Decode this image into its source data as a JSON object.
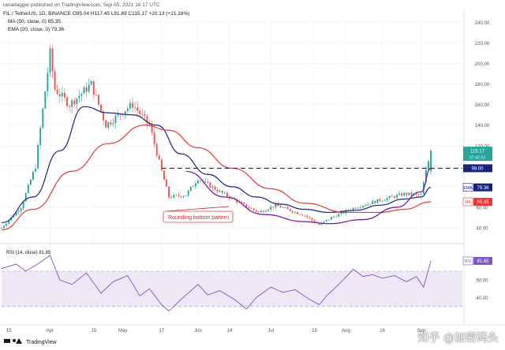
{
  "header": {
    "publisher": "ranadagger published on TradingView.com, Sep 05, 2021 16:17 UTC",
    "ohlc_line": "FIL / TetherUS, 1D, BINANCE  O95.04  H117.45  L91.89  C115.17  +20.13 (+21.18%)",
    "ma_line": "MA (50, close, 0)  65.35",
    "ema_line": "EMA (20, close, 0)  79.36"
  },
  "annotation": "Rounding bottom pattern",
  "footer_logo": "TradingView",
  "watermark": "知乎 @加密码头",
  "colors": {
    "up": "#26a69a",
    "down": "#ef5350",
    "ema": "#1a237e",
    "ma": "#e53935",
    "rounding": "#7b1fa2",
    "resistance": "#1a237e",
    "rsi": "#7e57c2",
    "rsi_band": "#ede7f6",
    "last_price": "#26a69a"
  },
  "chart_data": [
    {
      "type": "candlestick",
      "symbol": "FIL / TetherUS",
      "interval": "1D",
      "exchange": "BINANCE",
      "ohlc_last": {
        "open": 95.04,
        "high": 117.45,
        "low": 91.89,
        "close": 115.17,
        "change": 20.13,
        "change_pct": 21.18
      },
      "y_ticks": [
        40,
        60,
        80,
        100,
        120,
        140,
        160,
        180,
        200,
        220,
        240
      ],
      "ylim": [
        30,
        245
      ],
      "x_tick_labels": [
        "15",
        "Apr",
        "19",
        "May",
        "17",
        "Jun",
        "14",
        "Jul",
        "19",
        "Aug",
        "16",
        "Sep"
      ],
      "x_tick_dates": [
        "2021-03-15",
        "2021-04-01",
        "2021-04-19",
        "2021-05-01",
        "2021-05-17",
        "2021-06-01",
        "2021-06-14",
        "2021-07-01",
        "2021-07-19",
        "2021-08-01",
        "2021-08-16",
        "2021-09-01"
      ],
      "xlim": [
        "2021-03-12",
        "2021-09-18"
      ],
      "price_labels": [
        {
          "label": "115.17",
          "value": 115.17,
          "sublabel": "07:42:33",
          "color": "#26a69a"
        },
        {
          "label": "98.00",
          "value": 98.0,
          "color": "#1a237e"
        },
        {
          "label": "EMA",
          "value": 79.36,
          "text": "79.36",
          "color": "#1a237e"
        },
        {
          "label": "MA",
          "value": 65.35,
          "text": "65.35",
          "color": "#e53935"
        }
      ],
      "resistance_level": 98.0,
      "key_points": [
        {
          "date": "2021-03-12",
          "close": 40
        },
        {
          "date": "2021-03-20",
          "close": 60
        },
        {
          "date": "2021-03-26",
          "close": 100
        },
        {
          "date": "2021-04-01",
          "close": 210
        },
        {
          "date": "2021-04-03",
          "close": 175
        },
        {
          "date": "2021-04-09",
          "close": 160
        },
        {
          "date": "2021-04-18",
          "close": 180
        },
        {
          "date": "2021-04-24",
          "close": 140
        },
        {
          "date": "2021-05-02",
          "close": 155
        },
        {
          "date": "2021-05-05",
          "close": 160
        },
        {
          "date": "2021-05-12",
          "close": 140
        },
        {
          "date": "2021-05-17",
          "close": 95
        },
        {
          "date": "2021-05-20",
          "close": 70
        },
        {
          "date": "2021-05-27",
          "close": 72
        },
        {
          "date": "2021-06-01",
          "close": 88
        },
        {
          "date": "2021-06-10",
          "close": 75
        },
        {
          "date": "2021-06-20",
          "close": 62
        },
        {
          "date": "2021-06-26",
          "close": 55
        },
        {
          "date": "2021-07-03",
          "close": 62
        },
        {
          "date": "2021-07-15",
          "close": 52
        },
        {
          "date": "2021-07-21",
          "close": 43
        },
        {
          "date": "2021-07-26",
          "close": 50
        },
        {
          "date": "2021-08-05",
          "close": 60
        },
        {
          "date": "2021-08-15",
          "close": 67
        },
        {
          "date": "2021-08-25",
          "close": 73
        },
        {
          "date": "2021-09-01",
          "close": 72
        },
        {
          "date": "2021-09-03",
          "close": 95
        },
        {
          "date": "2021-09-05",
          "close": 115
        }
      ],
      "series": [
        {
          "name": "EMA (20, close, 0)",
          "style": "line",
          "color": "#1a237e",
          "points": [
            [
              "2021-03-12",
              45
            ],
            [
              "2021-03-25",
              70
            ],
            [
              "2021-04-05",
              115
            ],
            [
              "2021-04-15",
              158
            ],
            [
              "2021-04-25",
              152
            ],
            [
              "2021-05-05",
              150
            ],
            [
              "2021-05-15",
              140
            ],
            [
              "2021-05-25",
              112
            ],
            [
              "2021-06-05",
              92
            ],
            [
              "2021-06-15",
              80
            ],
            [
              "2021-06-25",
              70
            ],
            [
              "2021-07-05",
              63
            ],
            [
              "2021-07-15",
              58
            ],
            [
              "2021-07-25",
              55
            ],
            [
              "2021-08-05",
              57
            ],
            [
              "2021-08-15",
              62
            ],
            [
              "2021-08-25",
              68
            ],
            [
              "2021-09-01",
              70
            ],
            [
              "2021-09-05",
              79.36
            ]
          ]
        },
        {
          "name": "MA (50, close, 0)",
          "style": "line",
          "color": "#e53935",
          "points": [
            [
              "2021-03-12",
              38
            ],
            [
              "2021-03-25",
              58
            ],
            [
              "2021-04-10",
              95
            ],
            [
              "2021-04-25",
              122
            ],
            [
              "2021-05-10",
              140
            ],
            [
              "2021-05-20",
              135
            ],
            [
              "2021-06-01",
              118
            ],
            [
              "2021-06-15",
              98
            ],
            [
              "2021-07-01",
              78
            ],
            [
              "2021-07-15",
              64
            ],
            [
              "2021-08-01",
              55
            ],
            [
              "2021-08-15",
              55
            ],
            [
              "2021-08-25",
              58
            ],
            [
              "2021-09-05",
              65.35
            ]
          ]
        },
        {
          "name": "",
          "style": "curve",
          "color": "#7b1fa2",
          "points": [
            [
              "2021-05-27",
              95
            ],
            [
              "2021-06-12",
              70
            ],
            [
              "2021-06-28",
              53
            ],
            [
              "2021-07-15",
              46
            ],
            [
              "2021-07-25",
              44
            ],
            [
              "2021-08-08",
              48
            ],
            [
              "2021-08-22",
              60
            ],
            [
              "2021-09-01",
              75
            ],
            [
              "2021-09-05",
              98
            ]
          ]
        }
      ]
    },
    {
      "type": "line",
      "title": "RSI (14, close) 81.65",
      "series_name": "RSI (14, close)",
      "last_value": 81.65,
      "y_ticks": [
        40,
        60,
        80
      ],
      "ylim": [
        20,
        95
      ],
      "band": [
        30,
        70
      ],
      "points": [
        [
          "2021-03-12",
          73
        ],
        [
          "2021-03-18",
          78
        ],
        [
          "2021-03-22",
          70
        ],
        [
          "2021-03-28",
          80
        ],
        [
          "2021-04-01",
          88
        ],
        [
          "2021-04-05",
          60
        ],
        [
          "2021-04-10",
          55
        ],
        [
          "2021-04-16",
          68
        ],
        [
          "2021-04-22",
          45
        ],
        [
          "2021-04-27",
          58
        ],
        [
          "2021-05-03",
          65
        ],
        [
          "2021-05-08",
          42
        ],
        [
          "2021-05-12",
          50
        ],
        [
          "2021-05-17",
          32
        ],
        [
          "2021-05-20",
          25
        ],
        [
          "2021-05-25",
          38
        ],
        [
          "2021-06-01",
          55
        ],
        [
          "2021-06-05",
          43
        ],
        [
          "2021-06-10",
          48
        ],
        [
          "2021-06-16",
          38
        ],
        [
          "2021-06-21",
          27
        ],
        [
          "2021-06-25",
          40
        ],
        [
          "2021-07-01",
          52
        ],
        [
          "2021-07-06",
          46
        ],
        [
          "2021-07-11",
          49
        ],
        [
          "2021-07-17",
          38
        ],
        [
          "2021-07-21",
          32
        ],
        [
          "2021-07-24",
          42
        ],
        [
          "2021-07-29",
          55
        ],
        [
          "2021-08-04",
          72
        ],
        [
          "2021-08-08",
          64
        ],
        [
          "2021-08-12",
          66
        ],
        [
          "2021-08-16",
          62
        ],
        [
          "2021-08-21",
          65
        ],
        [
          "2021-08-26",
          58
        ],
        [
          "2021-08-30",
          64
        ],
        [
          "2021-09-02",
          52
        ],
        [
          "2021-09-05",
          81.65
        ]
      ]
    }
  ]
}
